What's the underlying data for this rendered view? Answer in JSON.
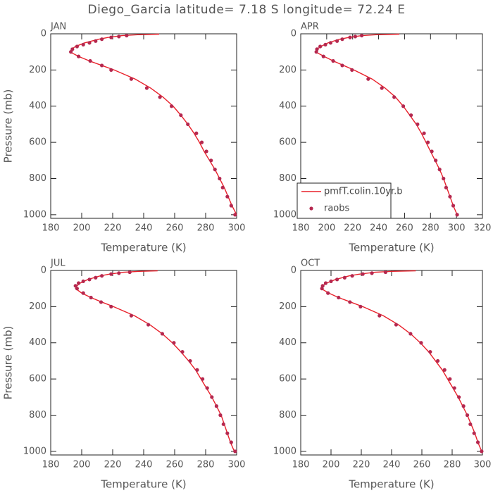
{
  "title": "Diego_Garcia  latitude= 7.18 S longitude= 72.24 E",
  "chart_data": [
    {
      "type": "line",
      "label": "JAN",
      "ylabel": "Pressure (mb)",
      "xlabel": "Temperature (K)",
      "xlim": [
        180,
        300
      ],
      "xticks": [
        180,
        200,
        220,
        240,
        260,
        280,
        300
      ],
      "ylim": [
        1020,
        0
      ],
      "yticks": [
        0,
        200,
        400,
        600,
        800,
        1000
      ],
      "series": [
        {
          "style": "line",
          "color": "#e8202a",
          "x": [
            300,
            297,
            294.5,
            292,
            289,
            286,
            282.5,
            279,
            276,
            272.5,
            268.5,
            264,
            259,
            252.5,
            244.5,
            234.5,
            221,
            213,
            205,
            198,
            192.5,
            193.5,
            196,
            202,
            211,
            217,
            226,
            236,
            250
          ],
          "y": [
            1000,
            950,
            900,
            850,
            800,
            750,
            700,
            650,
            600,
            550,
            500,
            450,
            400,
            350,
            300,
            250,
            200,
            175,
            150,
            125,
            100,
            85,
            70,
            50,
            30,
            20,
            10,
            5,
            2
          ]
        },
        {
          "style": "markers",
          "color": "#b5284f",
          "x": [
            299,
            296.5,
            294,
            291,
            289,
            286,
            283.5,
            280.5,
            277.5,
            274,
            268.5,
            264,
            258,
            250.5,
            242,
            232,
            219,
            213,
            205.5,
            198,
            193,
            194,
            197,
            201,
            205,
            209,
            213,
            219,
            224,
            229
          ],
          "y": [
            1000,
            950,
            900,
            850,
            800,
            750,
            700,
            650,
            600,
            550,
            500,
            450,
            400,
            350,
            300,
            250,
            200,
            175,
            150,
            125,
            100,
            85,
            70,
            60,
            50,
            40,
            30,
            20,
            15,
            10
          ]
        }
      ]
    },
    {
      "type": "line",
      "label": "APR",
      "xlabel": "Temperature (K)",
      "legend": "lower left",
      "xlim": [
        180,
        320
      ],
      "xticks": [
        180,
        200,
        220,
        240,
        260,
        280,
        300,
        320
      ],
      "ylim": [
        1020,
        0
      ],
      "yticks": [
        0,
        200,
        400,
        600,
        800,
        1000
      ],
      "series": [
        {
          "name": "pmfT.colin.10yr.b",
          "style": "line",
          "color": "#e8202a",
          "x": [
            300.5,
            297.5,
            295,
            292.5,
            290,
            287,
            283.5,
            280,
            276.5,
            273,
            269,
            264,
            259,
            253,
            245,
            235,
            221,
            213,
            205,
            198,
            191.5,
            192.5,
            195.5,
            201,
            210,
            217,
            227,
            238,
            256
          ],
          "y": [
            1000,
            950,
            900,
            850,
            800,
            750,
            700,
            650,
            600,
            550,
            500,
            450,
            400,
            350,
            300,
            250,
            200,
            175,
            150,
            125,
            100,
            85,
            70,
            50,
            30,
            20,
            10,
            5,
            2
          ]
        },
        {
          "name": "raobs",
          "style": "markers",
          "color": "#b5284f",
          "x": [
            300.5,
            297.5,
            295,
            292,
            290,
            287,
            284,
            281,
            278,
            275,
            270,
            265,
            259,
            252,
            242.5,
            232,
            219.5,
            212,
            205,
            197.5,
            192,
            192.5,
            195,
            199,
            203,
            208,
            212,
            218,
            222,
            227
          ],
          "y": [
            1000,
            950,
            900,
            850,
            800,
            750,
            700,
            650,
            600,
            550,
            500,
            450,
            400,
            350,
            300,
            250,
            200,
            175,
            150,
            125,
            100,
            85,
            70,
            60,
            50,
            40,
            30,
            20,
            15,
            10
          ]
        }
      ]
    },
    {
      "type": "line",
      "label": "JUL",
      "ylabel": "Pressure (mb)",
      "xlabel": "Temperature (K)",
      "xlim": [
        180,
        300
      ],
      "xticks": [
        180,
        200,
        220,
        240,
        260,
        280,
        300
      ],
      "ylim": [
        1020,
        0
      ],
      "yticks": [
        0,
        200,
        400,
        600,
        800,
        1000
      ],
      "series": [
        {
          "style": "line",
          "color": "#e8202a",
          "x": [
            298.5,
            296,
            294,
            292,
            290,
            287,
            284,
            280.5,
            277,
            273.5,
            269,
            264,
            258.5,
            252,
            244,
            234,
            220.5,
            213,
            206,
            200,
            196,
            197,
            199,
            204,
            212,
            218,
            227,
            237,
            249
          ],
          "y": [
            1000,
            950,
            900,
            850,
            800,
            750,
            700,
            650,
            600,
            550,
            500,
            450,
            400,
            350,
            300,
            250,
            200,
            175,
            150,
            125,
            100,
            85,
            70,
            50,
            30,
            20,
            10,
            5,
            2
          ]
        },
        {
          "style": "markers",
          "color": "#b5284f",
          "x": [
            299,
            296.5,
            294,
            291.5,
            289.5,
            287,
            284,
            281,
            278,
            274.5,
            270,
            265,
            259.5,
            252,
            243,
            232,
            219,
            212.5,
            206,
            201,
            197,
            196,
            198,
            201,
            205,
            209,
            213,
            219,
            224,
            231
          ],
          "y": [
            1000,
            950,
            900,
            850,
            800,
            750,
            700,
            650,
            600,
            550,
            500,
            450,
            400,
            350,
            300,
            250,
            200,
            175,
            150,
            125,
            100,
            85,
            70,
            60,
            50,
            40,
            30,
            20,
            15,
            10
          ]
        }
      ]
    },
    {
      "type": "line",
      "label": "OCT",
      "xlabel": "Temperature (K)",
      "xlim": [
        180,
        300
      ],
      "xticks": [
        180,
        200,
        220,
        240,
        260,
        280,
        300
      ],
      "ylim": [
        1020,
        0
      ],
      "yticks": [
        0,
        200,
        400,
        600,
        800,
        1000
      ],
      "series": [
        {
          "style": "line",
          "color": "#e8202a",
          "x": [
            299.5,
            297,
            295,
            292.5,
            290,
            287,
            284,
            280.5,
            277,
            273.5,
            269,
            264.5,
            259,
            252.5,
            244.5,
            234.5,
            221,
            213,
            205,
            198.5,
            193.5,
            194.5,
            197,
            203,
            212,
            219,
            229,
            240,
            256
          ],
          "y": [
            1000,
            950,
            900,
            850,
            800,
            750,
            700,
            650,
            600,
            550,
            500,
            450,
            400,
            350,
            300,
            250,
            200,
            175,
            150,
            125,
            100,
            85,
            70,
            50,
            30,
            20,
            10,
            5,
            2
          ]
        },
        {
          "style": "markers",
          "color": "#b5284f",
          "x": [
            299.5,
            297,
            294.5,
            292,
            290,
            287.5,
            284.5,
            281.5,
            278.5,
            275,
            270.5,
            265.5,
            259.5,
            252.5,
            243,
            232,
            219.5,
            212.5,
            205,
            198,
            194,
            194.5,
            196.5,
            200,
            204,
            209,
            214,
            221,
            227,
            236
          ],
          "y": [
            1000,
            950,
            900,
            850,
            800,
            750,
            700,
            650,
            600,
            550,
            500,
            450,
            400,
            350,
            300,
            250,
            200,
            175,
            150,
            125,
            100,
            85,
            70,
            60,
            50,
            40,
            30,
            20,
            15,
            10
          ]
        }
      ]
    }
  ]
}
